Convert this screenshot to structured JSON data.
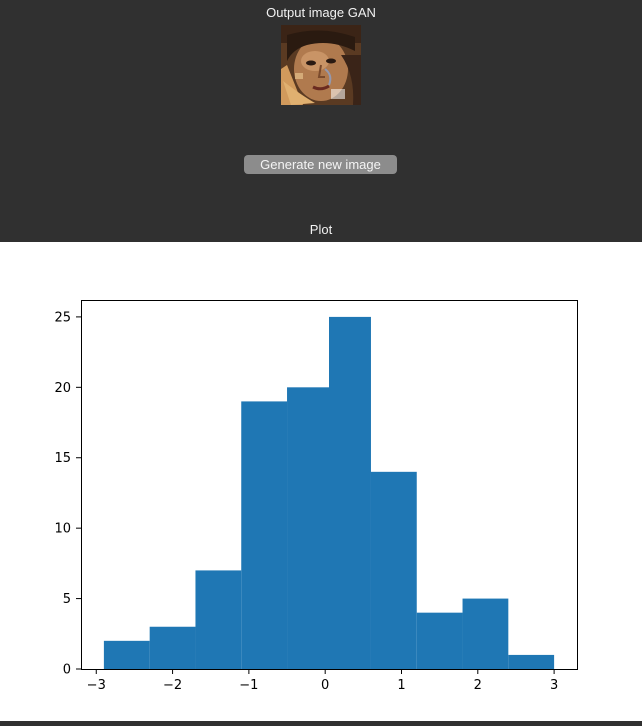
{
  "gan_section": {
    "title": "Output image GAN"
  },
  "controls": {
    "generate_label": "Generate new image"
  },
  "plot_section": {
    "title": "Plot"
  },
  "colors": {
    "background": "#303030",
    "bar": "#1f77b4",
    "button": "#8c8c8c"
  },
  "chart_data": {
    "type": "bar",
    "title": "",
    "xlabel": "",
    "ylabel": "",
    "bin_edges": [
      -2.9,
      -2.3,
      -1.7,
      -1.1,
      -0.5,
      0.05,
      0.6,
      1.2,
      1.8,
      2.4,
      3.0
    ],
    "values": [
      2,
      3,
      7,
      19,
      20,
      25,
      14,
      4,
      5,
      1
    ],
    "xlim": [
      -3.2,
      3.3
    ],
    "ylim": [
      0,
      26.2
    ],
    "xticks": [
      -3,
      -2,
      -1,
      0,
      1,
      2,
      3
    ],
    "xtick_labels": [
      "−3",
      "−2",
      "−1",
      "0",
      "1",
      "2",
      "3"
    ],
    "yticks": [
      0,
      5,
      10,
      15,
      20,
      25
    ],
    "ytick_labels": [
      "0",
      "5",
      "10",
      "15",
      "20",
      "25"
    ],
    "grid": false,
    "legend": "none"
  }
}
